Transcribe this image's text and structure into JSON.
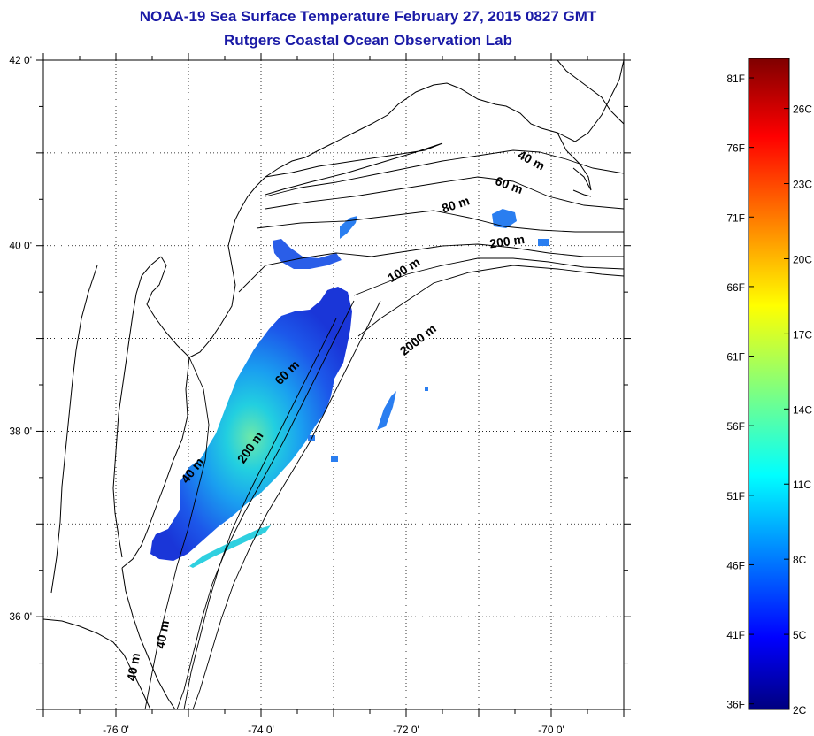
{
  "title_line1": "NOAA-19 Sea Surface Temperature February 27, 2015 0827 GMT",
  "title_line2": "Rutgers Coastal Ocean Observation Lab",
  "lat_ticks": [
    {
      "value": 42,
      "label": "42 0'"
    },
    {
      "value": 40,
      "label": "40 0'"
    },
    {
      "value": 38,
      "label": "38 0'"
    },
    {
      "value": 36,
      "label": "36 0'"
    }
  ],
  "lon_ticks": [
    {
      "value": -76,
      "label": "-76 0'"
    },
    {
      "value": -74,
      "label": "-74 0'"
    },
    {
      "value": -72,
      "label": "-72 0'"
    },
    {
      "value": -70,
      "label": "-70 0'"
    }
  ],
  "map_extent": {
    "lon_min": -77,
    "lon_max": -69,
    "lat_min": 35,
    "lat_max": 42
  },
  "contour_labels": [
    {
      "text": "40 m",
      "lon": -70.3,
      "lat": 40.88
    },
    {
      "text": "60 m",
      "lon": -70.6,
      "lat": 40.61
    },
    {
      "text": "80 m",
      "lon": -71.3,
      "lat": 40.4
    },
    {
      "text": "200 m",
      "lon": -70.6,
      "lat": 40.0
    },
    {
      "text": "100 m",
      "lon": -72.0,
      "lat": 39.7
    },
    {
      "text": "2000 m",
      "lon": -71.8,
      "lat": 38.95
    },
    {
      "text": "60 m",
      "lon": -73.6,
      "lat": 38.6
    },
    {
      "text": "200 m",
      "lon": -74.1,
      "lat": 37.8
    },
    {
      "text": "40 m",
      "lon": -74.9,
      "lat": 37.55
    },
    {
      "text": "40 m",
      "lon": -75.3,
      "lat": 35.8
    },
    {
      "text": "40 m",
      "lon": -75.7,
      "lat": 35.45
    }
  ],
  "colorbar": {
    "fahrenheit_labels": [
      "81F",
      "76F",
      "71F",
      "66F",
      "61F",
      "56F",
      "51F",
      "46F",
      "41F",
      "36F"
    ],
    "celsius_labels": [
      "26C",
      "23C",
      "20C",
      "17C",
      "14C",
      "11C",
      "8C",
      "5C",
      "2C"
    ],
    "celsius_values": [
      26,
      23,
      20,
      17,
      14,
      11,
      8,
      5,
      2
    ],
    "range_c": [
      2,
      28
    ],
    "colormap": "jet"
  },
  "colors": {
    "title": "#1a1aa6",
    "land_outline": "#000000"
  }
}
